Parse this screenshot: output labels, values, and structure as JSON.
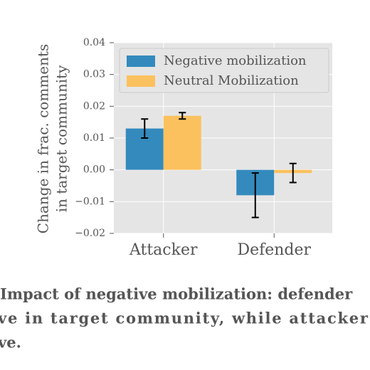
{
  "chart_data": {
    "type": "bar",
    "ylabel": [
      "Change in frac. comments",
      "in target community"
    ],
    "categories": [
      "Attacker",
      "Defender"
    ],
    "series": [
      {
        "name": "Negative mobilization",
        "color": "#348abd",
        "values": [
          0.013,
          -0.008
        ],
        "errors": [
          0.003,
          0.007
        ]
      },
      {
        "name": "Neutral Mobilization",
        "color": "#fbc15e",
        "values": [
          0.017,
          -0.001
        ],
        "errors": [
          0.001,
          0.003
        ]
      }
    ],
    "ylim": [
      -0.02,
      0.04
    ],
    "yticks": [
      {
        "value": -0.02,
        "label": "−0.02"
      },
      {
        "value": -0.01,
        "label": "−0.01"
      },
      {
        "value": 0,
        "label": "0.00"
      },
      0.01,
      0.02,
      0.03,
      0.04
    ],
    "grid": true,
    "legend": "upper left",
    "caption": [
      "Impact of negative mobilization: defender",
      "ve in target community, while attacker",
      "ve."
    ]
  }
}
